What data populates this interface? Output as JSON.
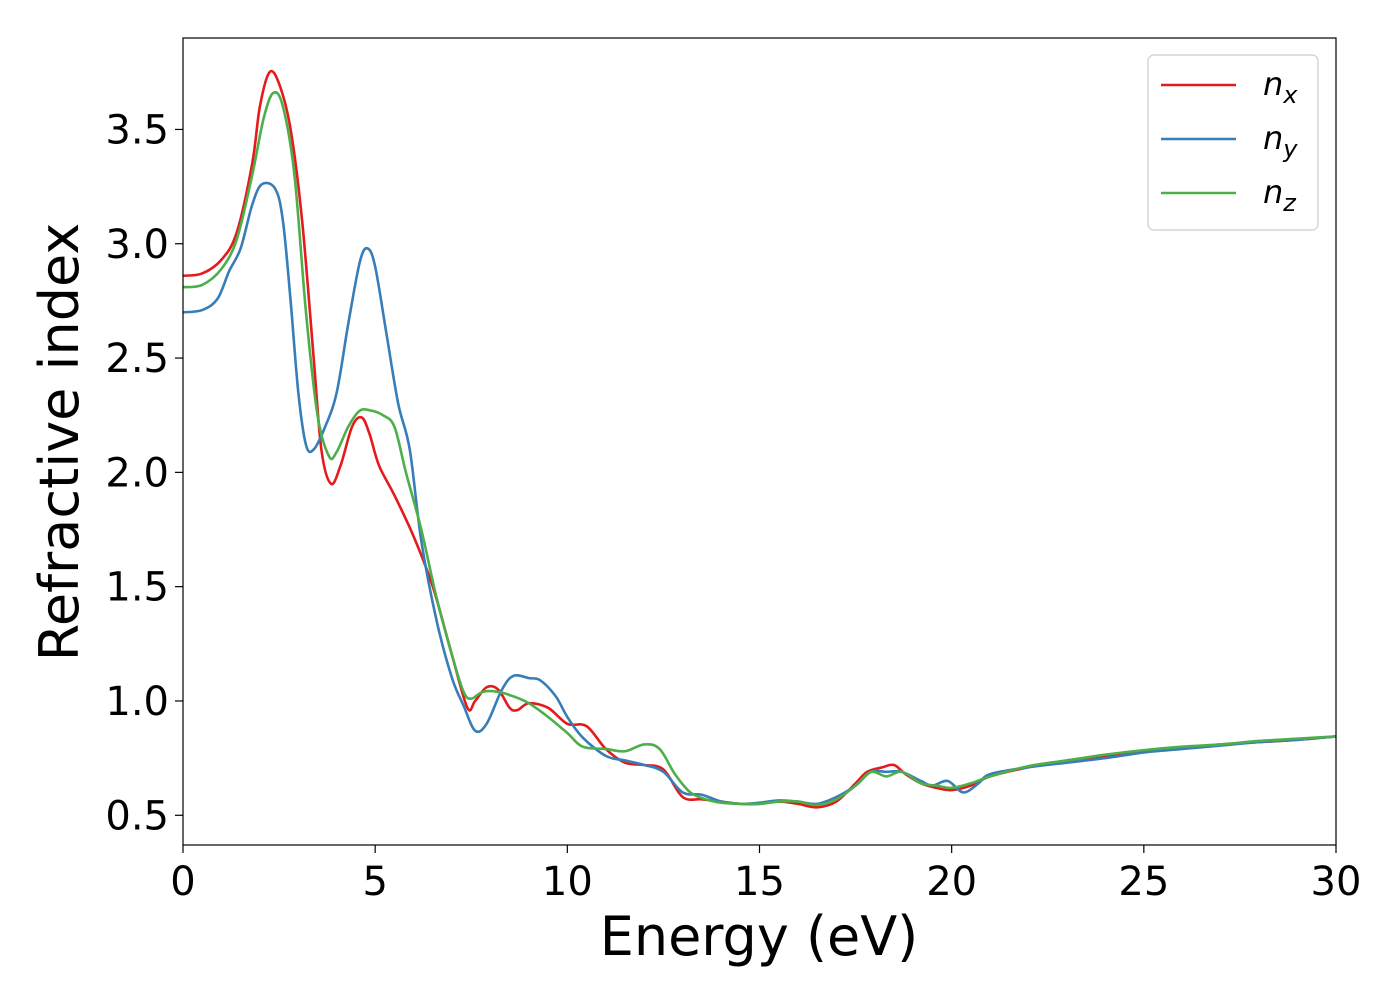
{
  "chart_data": {
    "type": "line",
    "title": "",
    "xlabel": "Energy (eV)",
    "ylabel": "Refractive index",
    "xlim": [
      0,
      30
    ],
    "ylim": [
      0.37,
      3.9
    ],
    "xticks": [
      0,
      5,
      10,
      15,
      20,
      25,
      30
    ],
    "xtick_labels": [
      "0",
      "5",
      "10",
      "15",
      "20",
      "25",
      "30"
    ],
    "yticks": [
      0.5,
      1.0,
      1.5,
      2.0,
      2.5,
      3.0,
      3.5
    ],
    "ytick_labels": [
      "0.5",
      "1.0",
      "1.5",
      "2.0",
      "2.5",
      "3.0",
      "3.5"
    ],
    "grid": false,
    "legend_position": "top-right",
    "series": [
      {
        "name": "n_x",
        "label_base": "n",
        "label_sub": "x",
        "color": "#e41a1c",
        "points": [
          [
            0,
            2.86
          ],
          [
            0.5,
            2.87
          ],
          [
            1.0,
            2.93
          ],
          [
            1.4,
            3.05
          ],
          [
            1.8,
            3.35
          ],
          [
            2.0,
            3.6
          ],
          [
            2.25,
            3.75
          ],
          [
            2.5,
            3.7
          ],
          [
            2.8,
            3.5
          ],
          [
            3.1,
            3.1
          ],
          [
            3.4,
            2.5
          ],
          [
            3.6,
            2.1
          ],
          [
            3.85,
            1.95
          ],
          [
            4.1,
            2.03
          ],
          [
            4.4,
            2.2
          ],
          [
            4.65,
            2.24
          ],
          [
            4.85,
            2.17
          ],
          [
            5.1,
            2.03
          ],
          [
            5.5,
            1.9
          ],
          [
            6.0,
            1.72
          ],
          [
            6.5,
            1.5
          ],
          [
            7.0,
            1.2
          ],
          [
            7.4,
            0.97
          ],
          [
            7.6,
            1.0
          ],
          [
            7.9,
            1.06
          ],
          [
            8.2,
            1.05
          ],
          [
            8.5,
            0.97
          ],
          [
            8.7,
            0.96
          ],
          [
            9.0,
            0.99
          ],
          [
            9.5,
            0.97
          ],
          [
            10.0,
            0.9
          ],
          [
            10.5,
            0.89
          ],
          [
            11.0,
            0.79
          ],
          [
            11.5,
            0.73
          ],
          [
            12.0,
            0.72
          ],
          [
            12.5,
            0.7
          ],
          [
            13.0,
            0.58
          ],
          [
            13.5,
            0.57
          ],
          [
            14.0,
            0.56
          ],
          [
            14.5,
            0.55
          ],
          [
            15.0,
            0.55
          ],
          [
            15.5,
            0.56
          ],
          [
            16.0,
            0.55
          ],
          [
            16.5,
            0.535
          ],
          [
            17.0,
            0.56
          ],
          [
            17.5,
            0.64
          ],
          [
            17.8,
            0.69
          ],
          [
            18.2,
            0.71
          ],
          [
            18.5,
            0.72
          ],
          [
            18.8,
            0.68
          ],
          [
            19.2,
            0.64
          ],
          [
            19.6,
            0.62
          ],
          [
            20.0,
            0.61
          ],
          [
            20.5,
            0.63
          ],
          [
            21.0,
            0.67
          ],
          [
            22.0,
            0.71
          ],
          [
            23.0,
            0.74
          ],
          [
            24.0,
            0.76
          ],
          [
            25.0,
            0.78
          ],
          [
            26.0,
            0.795
          ],
          [
            27.0,
            0.81
          ],
          [
            28.0,
            0.82
          ],
          [
            29.0,
            0.83
          ],
          [
            30.0,
            0.845
          ]
        ]
      },
      {
        "name": "n_y",
        "label_base": "n",
        "label_sub": "y",
        "color": "#377eb8",
        "points": [
          [
            0,
            2.7
          ],
          [
            0.5,
            2.71
          ],
          [
            0.9,
            2.76
          ],
          [
            1.2,
            2.88
          ],
          [
            1.5,
            2.98
          ],
          [
            1.8,
            3.17
          ],
          [
            2.05,
            3.26
          ],
          [
            2.4,
            3.24
          ],
          [
            2.6,
            3.1
          ],
          [
            2.8,
            2.75
          ],
          [
            3.0,
            2.35
          ],
          [
            3.2,
            2.12
          ],
          [
            3.4,
            2.1
          ],
          [
            3.7,
            2.2
          ],
          [
            4.0,
            2.35
          ],
          [
            4.3,
            2.65
          ],
          [
            4.6,
            2.92
          ],
          [
            4.8,
            2.98
          ],
          [
            5.0,
            2.9
          ],
          [
            5.3,
            2.6
          ],
          [
            5.6,
            2.3
          ],
          [
            5.9,
            2.1
          ],
          [
            6.2,
            1.7
          ],
          [
            6.6,
            1.35
          ],
          [
            7.0,
            1.1
          ],
          [
            7.3,
            0.98
          ],
          [
            7.6,
            0.87
          ],
          [
            7.9,
            0.9
          ],
          [
            8.3,
            1.05
          ],
          [
            8.6,
            1.11
          ],
          [
            9.0,
            1.1
          ],
          [
            9.3,
            1.09
          ],
          [
            9.7,
            1.02
          ],
          [
            10.0,
            0.93
          ],
          [
            10.4,
            0.84
          ],
          [
            11.0,
            0.76
          ],
          [
            11.5,
            0.74
          ],
          [
            12.0,
            0.72
          ],
          [
            12.5,
            0.69
          ],
          [
            13.0,
            0.6
          ],
          [
            13.5,
            0.59
          ],
          [
            14.0,
            0.56
          ],
          [
            14.5,
            0.55
          ],
          [
            15.0,
            0.555
          ],
          [
            15.5,
            0.565
          ],
          [
            16.0,
            0.56
          ],
          [
            16.5,
            0.55
          ],
          [
            17.0,
            0.58
          ],
          [
            17.5,
            0.63
          ],
          [
            17.9,
            0.69
          ],
          [
            18.3,
            0.69
          ],
          [
            18.7,
            0.69
          ],
          [
            19.2,
            0.65
          ],
          [
            19.5,
            0.63
          ],
          [
            19.9,
            0.65
          ],
          [
            20.3,
            0.6
          ],
          [
            20.7,
            0.64
          ],
          [
            21.0,
            0.68
          ],
          [
            22.0,
            0.71
          ],
          [
            23.0,
            0.73
          ],
          [
            24.0,
            0.75
          ],
          [
            25.0,
            0.775
          ],
          [
            26.0,
            0.79
          ],
          [
            27.0,
            0.805
          ],
          [
            28.0,
            0.82
          ],
          [
            29.0,
            0.83
          ],
          [
            30.0,
            0.845
          ]
        ]
      },
      {
        "name": "n_z",
        "label_base": "n",
        "label_sub": "z",
        "color": "#4daf4a",
        "points": [
          [
            0,
            2.81
          ],
          [
            0.5,
            2.82
          ],
          [
            1.0,
            2.89
          ],
          [
            1.4,
            3.02
          ],
          [
            1.8,
            3.3
          ],
          [
            2.1,
            3.55
          ],
          [
            2.35,
            3.66
          ],
          [
            2.6,
            3.6
          ],
          [
            2.9,
            3.3
          ],
          [
            3.2,
            2.7
          ],
          [
            3.5,
            2.25
          ],
          [
            3.8,
            2.07
          ],
          [
            4.0,
            2.09
          ],
          [
            4.3,
            2.2
          ],
          [
            4.6,
            2.27
          ],
          [
            4.9,
            2.27
          ],
          [
            5.2,
            2.25
          ],
          [
            5.5,
            2.2
          ],
          [
            5.8,
            2.0
          ],
          [
            6.2,
            1.75
          ],
          [
            6.6,
            1.45
          ],
          [
            7.0,
            1.2
          ],
          [
            7.3,
            1.04
          ],
          [
            7.5,
            1.01
          ],
          [
            7.8,
            1.04
          ],
          [
            8.2,
            1.04
          ],
          [
            8.6,
            1.02
          ],
          [
            9.0,
            0.99
          ],
          [
            9.5,
            0.93
          ],
          [
            10.0,
            0.86
          ],
          [
            10.4,
            0.8
          ],
          [
            11.0,
            0.79
          ],
          [
            11.5,
            0.78
          ],
          [
            12.0,
            0.81
          ],
          [
            12.4,
            0.79
          ],
          [
            12.8,
            0.68
          ],
          [
            13.2,
            0.6
          ],
          [
            13.6,
            0.57
          ],
          [
            14.0,
            0.555
          ],
          [
            14.5,
            0.55
          ],
          [
            15.0,
            0.55
          ],
          [
            15.5,
            0.56
          ],
          [
            16.0,
            0.56
          ],
          [
            16.5,
            0.545
          ],
          [
            17.0,
            0.57
          ],
          [
            17.5,
            0.63
          ],
          [
            17.9,
            0.69
          ],
          [
            18.3,
            0.67
          ],
          [
            18.7,
            0.69
          ],
          [
            19.2,
            0.64
          ],
          [
            19.6,
            0.63
          ],
          [
            20.0,
            0.62
          ],
          [
            20.5,
            0.64
          ],
          [
            21.0,
            0.67
          ],
          [
            22.0,
            0.715
          ],
          [
            23.0,
            0.74
          ],
          [
            24.0,
            0.765
          ],
          [
            25.0,
            0.785
          ],
          [
            26.0,
            0.8
          ],
          [
            27.0,
            0.81
          ],
          [
            28.0,
            0.825
          ],
          [
            29.0,
            0.835
          ],
          [
            30.0,
            0.845
          ]
        ]
      }
    ]
  }
}
